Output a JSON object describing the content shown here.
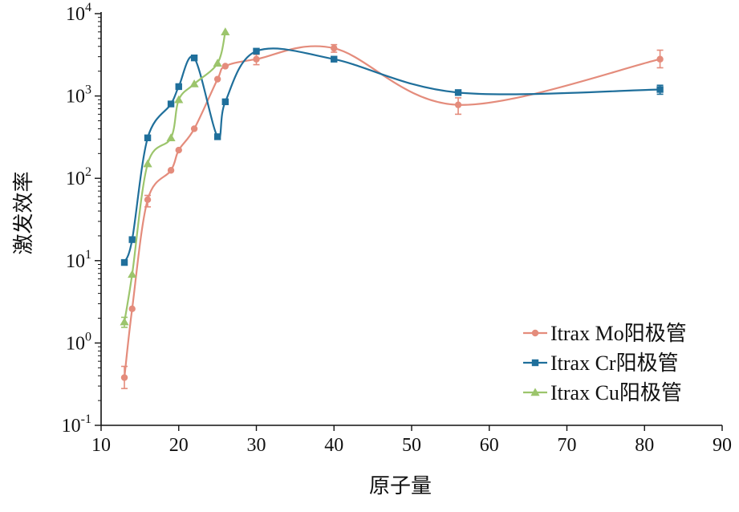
{
  "chart_data": {
    "type": "line",
    "xlabel": "原子量",
    "ylabel": "激发效率",
    "xlim": [
      10,
      90
    ],
    "ylim_log10": [
      -1,
      4
    ],
    "y_scale": "log",
    "x_ticks": [
      10,
      20,
      30,
      40,
      50,
      60,
      70,
      80,
      90
    ],
    "y_ticks": [
      {
        "mantissa": "10",
        "exponent": "-1",
        "exp_value": -1
      },
      {
        "mantissa": "10",
        "exponent": "0",
        "exp_value": 0
      },
      {
        "mantissa": "10",
        "exponent": "1",
        "exp_value": 1
      },
      {
        "mantissa": "10",
        "exponent": "2",
        "exp_value": 2
      },
      {
        "mantissa": "10",
        "exponent": "3",
        "exp_value": 3
      },
      {
        "mantissa": "10",
        "exponent": "4",
        "exp_value": 4
      }
    ],
    "legend_position": "bottom-right",
    "grid": false,
    "series": [
      {
        "name": "Itrax Mo阳极管",
        "color": "#e48c7c",
        "marker": "circle",
        "x": [
          13,
          14,
          16,
          19,
          20,
          22,
          25,
          26,
          30,
          40,
          56,
          82
        ],
        "y": [
          0.38,
          2.6,
          55,
          125,
          220,
          400,
          1600,
          2300,
          2800,
          3800,
          780,
          2800
        ],
        "err_low": [
          0.28,
          null,
          45,
          null,
          null,
          null,
          null,
          null,
          2400,
          3400,
          600,
          2200
        ],
        "err_high": [
          0.52,
          null,
          62,
          null,
          null,
          null,
          null,
          null,
          3200,
          4200,
          950,
          3600
        ]
      },
      {
        "name": "Itrax Cr阳极管",
        "color": "#1f6f9b",
        "marker": "square",
        "x": [
          13,
          14,
          16,
          19,
          20,
          22,
          25,
          26,
          30,
          40,
          56,
          82
        ],
        "y": [
          9.5,
          18,
          310,
          800,
          1300,
          2900,
          320,
          850,
          3500,
          2800,
          1100,
          1200
        ],
        "err_low": [
          null,
          null,
          null,
          null,
          null,
          null,
          null,
          null,
          null,
          null,
          null,
          1050
        ],
        "err_high": [
          null,
          null,
          null,
          null,
          null,
          null,
          null,
          null,
          null,
          null,
          null,
          1350
        ]
      },
      {
        "name": "Itrax Cu阳极管",
        "color": "#9cc56c",
        "marker": "triangle",
        "x": [
          13,
          14,
          16,
          19,
          20,
          22,
          25,
          26
        ],
        "y": [
          1.8,
          6.8,
          150,
          310,
          900,
          1400,
          2500,
          6000
        ],
        "err_low": [
          1.55,
          null,
          null,
          null,
          null,
          null,
          null,
          null
        ],
        "err_high": [
          2.05,
          null,
          null,
          null,
          null,
          null,
          null,
          null
        ]
      }
    ]
  }
}
